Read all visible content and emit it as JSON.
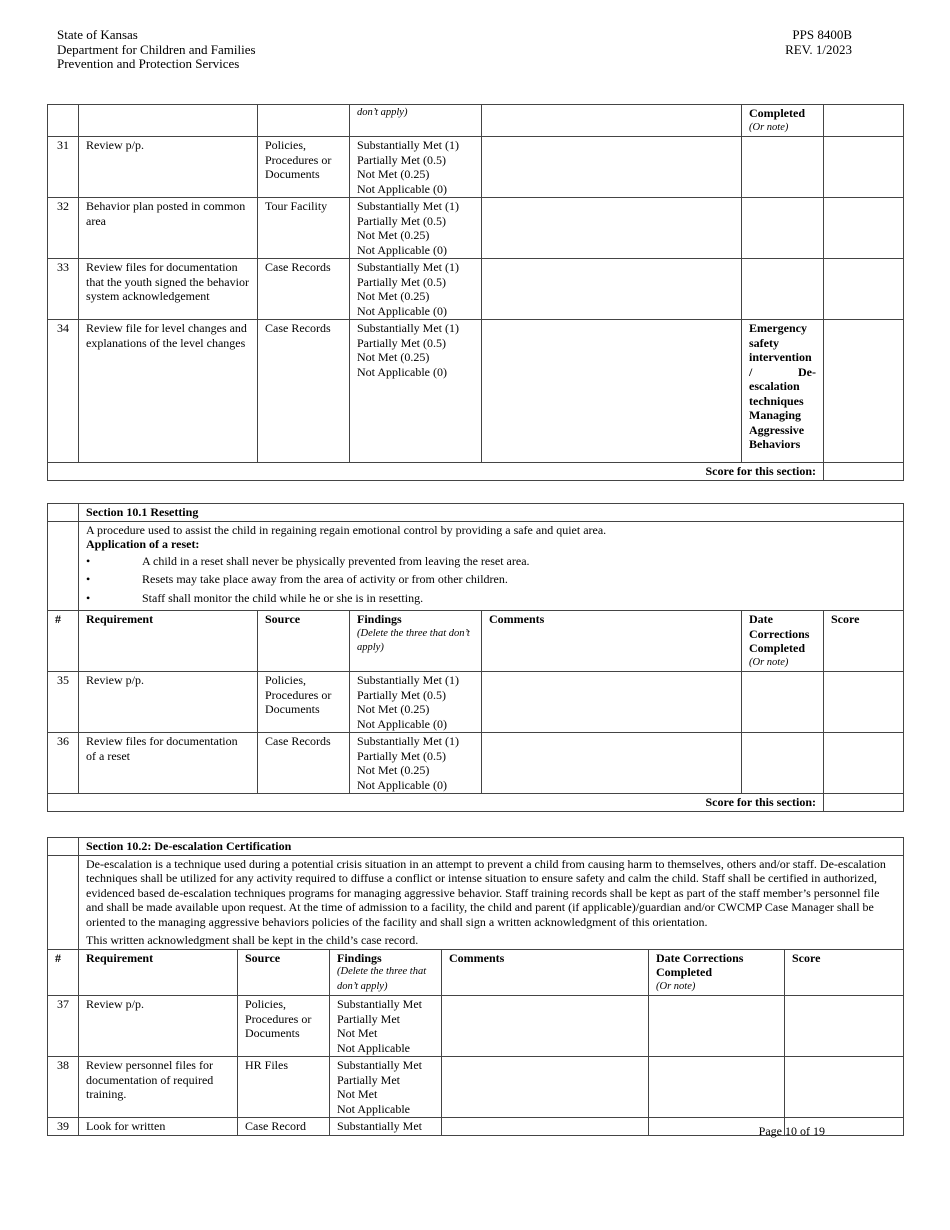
{
  "header": {
    "left": [
      "State of Kansas",
      "Department for Children and Families",
      "Prevention and Protection Services"
    ],
    "right": [
      "PPS 8400B",
      "REV. 1/2023"
    ]
  },
  "table1": {
    "cont_findings": "don’t apply)",
    "cont_date": "Completed",
    "cont_date_note": "(Or note)",
    "rows": [
      {
        "num": "31",
        "req": "Review p/p.",
        "source": "Policies, Procedures or Documents",
        "findings": [
          "Substantially Met (1)",
          "Partially Met (0.5)",
          "Not Met (0.25)",
          "Not Applicable (0)"
        ],
        "date": []
      },
      {
        "num": "32",
        "req": "Behavior plan posted in common area",
        "source": "Tour Facility",
        "findings": [
          "Substantially Met (1)",
          "Partially Met (0.5)",
          "Not Met (0.25)",
          "Not Applicable (0)"
        ],
        "date": []
      },
      {
        "num": "33",
        "req": "Review files for documentation that the youth signed the behavior system acknowledgement",
        "source": "Case Records",
        "findings": [
          "Substantially Met (1)",
          "Partially Met (0.5)",
          "Not Met (0.25)",
          "Not Applicable (0)"
        ],
        "date": []
      },
      {
        "num": "34",
        "req": "Review file for level changes and explanations of the level changes",
        "source": "Case Records",
        "findings": [
          "Substantially Met (1)",
          "Partially Met (0.5)",
          "Not Met (0.25)",
          "Not Applicable (0)"
        ],
        "date": [
          "Emergency safety intervention / De-escalation techniques",
          "Managing Aggressive Behaviors"
        ]
      }
    ],
    "score_label": "Score for this section:"
  },
  "table2": {
    "title": "Section 10.1 Resetting",
    "desc": "A procedure used to assist the child in regaining regain emotional control by providing a safe and quiet area.",
    "app_label": "Application of a reset:",
    "bullet": "•",
    "bullets": [
      "A child in a reset shall never be physically prevented from leaving the reset area.",
      "Resets may take place away from the area of activity or from other children.",
      "Staff shall monitor the child while he or she is in resetting."
    ],
    "cols": {
      "num": "#",
      "req": "Requirement",
      "source": "Source",
      "findings": "Findings",
      "findings_note": "(Delete the three that don’t apply)",
      "comments": "Comments",
      "date": "Date Corrections Completed",
      "date_note": "(Or note)",
      "score": "Score"
    },
    "rows": [
      {
        "num": "35",
        "req": "Review p/p.",
        "source": "Policies, Procedures or Documents",
        "findings": [
          "Substantially Met (1)",
          "Partially Met (0.5)",
          "Not Met (0.25)",
          "Not Applicable (0)"
        ]
      },
      {
        "num": "36",
        "req": "Review files for documentation of a reset",
        "source": "Case Records",
        "findings": [
          "Substantially Met (1)",
          "Partially Met (0.5)",
          "Not Met (0.25)",
          "Not Applicable (0)"
        ]
      }
    ],
    "score_label": "Score for this section:"
  },
  "table3": {
    "title": "Section 10.2:  De-escalation Certification",
    "desc": "De-escalation is a technique used during a potential crisis situation in an attempt to prevent a child from causing harm to themselves, others and/or staff. De-escalation techniques shall be utilized for any activity required to diffuse a conflict or intense situation to ensure safety and calm the child. Staff shall be certified in authorized, evidenced based de-escalation techniques programs for managing aggressive behavior. Staff training records shall be kept as part of the staff member’s personnel file and shall be made available upon request. At the time of admission to a facility, the child and parent (if applicable)/guardian and/or CWCMP Case Manager shall be oriented to the managing aggressive behaviors policies of the facility and shall sign a written acknowledgment of this orientation.",
    "desc2": "This written acknowledgment shall be kept in the child’s case record.",
    "cols": {
      "num": "#",
      "req": "Requirement",
      "source": "Source",
      "findings": "Findings",
      "findings_note": "(Delete the three that don’t apply)",
      "comments": "Comments",
      "date": "Date Corrections Completed",
      "date_note": "(Or note)",
      "score": "Score"
    },
    "rows": [
      {
        "num": "37",
        "req": "Review p/p.",
        "source": "Policies, Procedures or Documents",
        "findings": [
          "Substantially Met",
          "Partially Met",
          "Not Met",
          "Not Applicable"
        ]
      },
      {
        "num": "38",
        "req": "Review personnel files for documentation of required training.",
        "source": "HR Files",
        "findings": [
          "Substantially Met",
          "Partially Met",
          "Not Met",
          "Not Applicable"
        ]
      },
      {
        "num": "39",
        "req": "Look for written",
        "source": "Case Record",
        "findings": [
          "Substantially Met"
        ]
      }
    ]
  },
  "footer": {
    "page": "Page 10 of 19"
  }
}
